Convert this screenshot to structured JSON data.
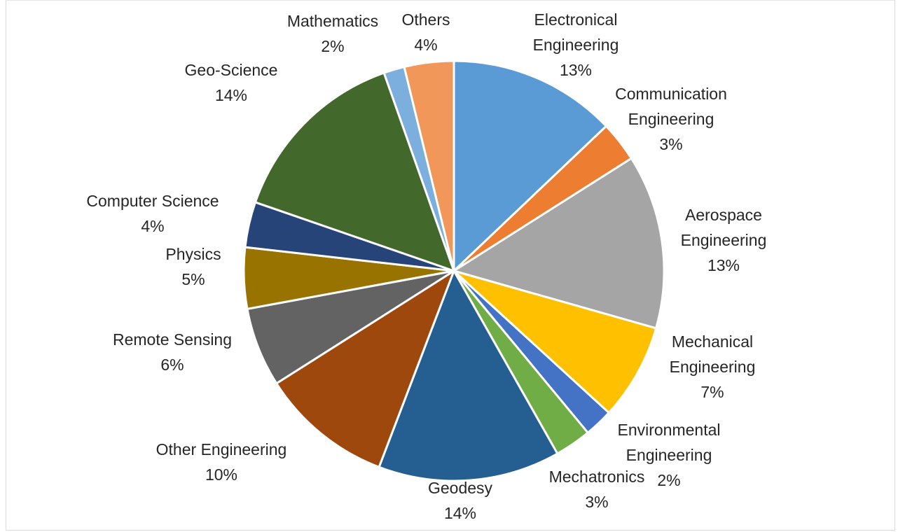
{
  "chart_data": {
    "type": "pie",
    "title": "",
    "start_angle_deg": 0,
    "direction": "clockwise",
    "slices": [
      {
        "label": [
          "Electronical",
          "Engineering"
        ],
        "percent": "13%",
        "value": 12.9,
        "color": "#5B9BD5"
      },
      {
        "label": [
          "Communication",
          "Engineering"
        ],
        "percent": "3%",
        "value": 3.1,
        "color": "#ED7D31"
      },
      {
        "label": [
          "Aerospace",
          "Engineering"
        ],
        "percent": "13%",
        "value": 13.4,
        "color": "#A5A5A5"
      },
      {
        "label": [
          "Mechanical",
          "Engineering"
        ],
        "percent": "7%",
        "value": 7.4,
        "color": "#FFC000"
      },
      {
        "label": [
          "Environmental",
          "Engineering"
        ],
        "percent": "2%",
        "value": 2.2,
        "color": "#4472C4"
      },
      {
        "label": [
          "Mechatronics"
        ],
        "percent": "3%",
        "value": 2.8,
        "color": "#70AD47"
      },
      {
        "label": [
          "Geodesy"
        ],
        "percent": "14%",
        "value": 14.0,
        "color": "#255E91"
      },
      {
        "label": [
          "Other Engineering"
        ],
        "percent": "10%",
        "value": 10.2,
        "color": "#9E480E"
      },
      {
        "label": [
          "Remote Sensing"
        ],
        "percent": "6%",
        "value": 6.1,
        "color": "#636363"
      },
      {
        "label": [
          "Physics"
        ],
        "percent": "5%",
        "value": 4.7,
        "color": "#997300"
      },
      {
        "label": [
          "Computer Science"
        ],
        "percent": "4%",
        "value": 3.5,
        "color": "#264478"
      },
      {
        "label": [
          "Geo-Science"
        ],
        "percent": "14%",
        "value": 14.3,
        "color": "#43682B"
      },
      {
        "label": [
          "Mathematics"
        ],
        "percent": "2%",
        "value": 1.6,
        "color": "#7CAFDD"
      },
      {
        "label": [
          "Others"
        ],
        "percent": "4%",
        "value": 3.8,
        "color": "#F1975A"
      }
    ]
  }
}
